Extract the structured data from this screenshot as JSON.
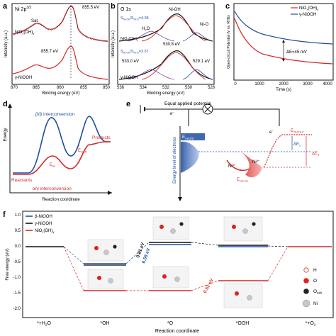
{
  "panel_a": {
    "letter": "a",
    "title": "Ni 2p",
    "title_sup": "3/2",
    "sat_label": "Sat.",
    "peak_top": "855.5 eV",
    "peak_bottom": "855.7 eV",
    "sample_top": "NiO",
    "sample_top_sub": "x",
    "sample_top_mid": "(OH)",
    "sample_top_sub2": "y",
    "sample_bottom": "γ-NiOOH",
    "ylabel": "Intensity (a.u.)",
    "xlabel": "Binding energy (eV)",
    "xticks": [
      "870",
      "865",
      "860",
      "855",
      "850"
    ]
  },
  "panel_b": {
    "letter": "b",
    "title": "O 1s",
    "ratio_top": "S",
    "ratio_top_sub1": "Ni-OH",
    "ratio_top_mid": "/S",
    "ratio_top_sub2": "Ni-O",
    "ratio_top_val": "=4.05",
    "ratio_bottom_val": "=3.57",
    "label_niOH": "Ni-OH",
    "label_h2o": "H",
    "label_h2o_sub": "2",
    "label_h2o_end": "O",
    "label_nio": "Ni-O",
    "peak_top": "530.8 eV",
    "peak_bottom_left": "533.0 eV",
    "peak_bottom_right": "529.1 eV",
    "sample_top": "NiO",
    "sample_top_sub": "x",
    "sample_top_mid": "(OH)",
    "sample_top_sub2": "y",
    "sample_bottom": "γ-NiOOH",
    "ylabel": "Intensity (a.u.)",
    "xlabel": "Binding energy (eV)",
    "xticks": [
      "536",
      "534",
      "532",
      "530",
      "528"
    ]
  },
  "panel_c": {
    "letter": "c",
    "legend": [
      {
        "name": "NiO",
        "sub": "x",
        "mid": "(OH)",
        "sub2": "y",
        "color": "#d62728"
      },
      {
        "name": "γ-NiOOH",
        "color": "#1f4ea0"
      }
    ],
    "delta_label": "ΔE=45 mV",
    "ylabel": "Open-circuit Potential (V vs. RHE)",
    "xlabel": "Time (s)",
    "xticks": [
      "0",
      "1000",
      "2000",
      "3000",
      "4000"
    ]
  },
  "panel_d": {
    "letter": "d",
    "ylabel": "Energy",
    "xlabel": "Reaction coordinate",
    "label_beta": "β/β interconversion",
    "label_alpha": "α/γ interconversion",
    "label_reactants": "Reactants",
    "label_products": "Products",
    "label_ea": "E",
    "label_ea_sub": "as",
    "label_eoer": "E",
    "label_eoer_sub": "OER"
  },
  "panel_e": {
    "letter": "e",
    "potential_label": "Equal applied potential",
    "eminus": "e",
    "ylabel": "Energy level of electrons",
    "label_ecat_beta": "E",
    "label_ecat_beta_sub": "cat,β/β",
    "label_ecat_ag": "E",
    "label_ecat_ag_sub": "cat,α/γ",
    "label_ni3": "Ni",
    "label_ni3_sup": "3+",
    "label_ni4": "Ni",
    "label_ni4_sup": "4+",
    "label_eoh": "E",
    "label_eoh_sub": "OH/OH*",
    "label_de1": "ΔE",
    "label_de1_sub": "1",
    "label_de2": "ΔE",
    "label_de2_sub": "2"
  },
  "panel_f": {
    "letter": "f",
    "legend": [
      {
        "name": "β-NiOOH",
        "color": "#1f4ea0"
      },
      {
        "name": "γ-NiOOH",
        "color": "#111111"
      },
      {
        "name": "NiO",
        "sub": "x",
        "mid": "(OH)",
        "sub2": "y",
        "color": "#d62728"
      }
    ],
    "ylabel": "Free energy (eV)",
    "xlabel": "Reaction coordinate",
    "yticks": [
      "1.0",
      "0.5",
      "0.0",
      "-0.5",
      "-1.0",
      "-1.5",
      "-2.0"
    ],
    "steps": [
      "*+H",
      "*OH",
      "*O",
      "*OOH",
      "*+O"
    ],
    "step_subs": [
      "2",
      "",
      "",
      "",
      "2"
    ],
    "step_tails": [
      "O",
      "",
      "",
      "",
      ""
    ],
    "label_081": "0.81 eV",
    "label_059": "0.59 eV",
    "label_051": "0.51 eV",
    "atom_legend": [
      {
        "name": "H",
        "color": "#ffffff"
      },
      {
        "name": "O",
        "color": "#e02020"
      },
      {
        "name": "O",
        "sub": "ads",
        "color": "#222222"
      },
      {
        "name": "Ni",
        "color": "#c8c8c8"
      }
    ]
  }
}
